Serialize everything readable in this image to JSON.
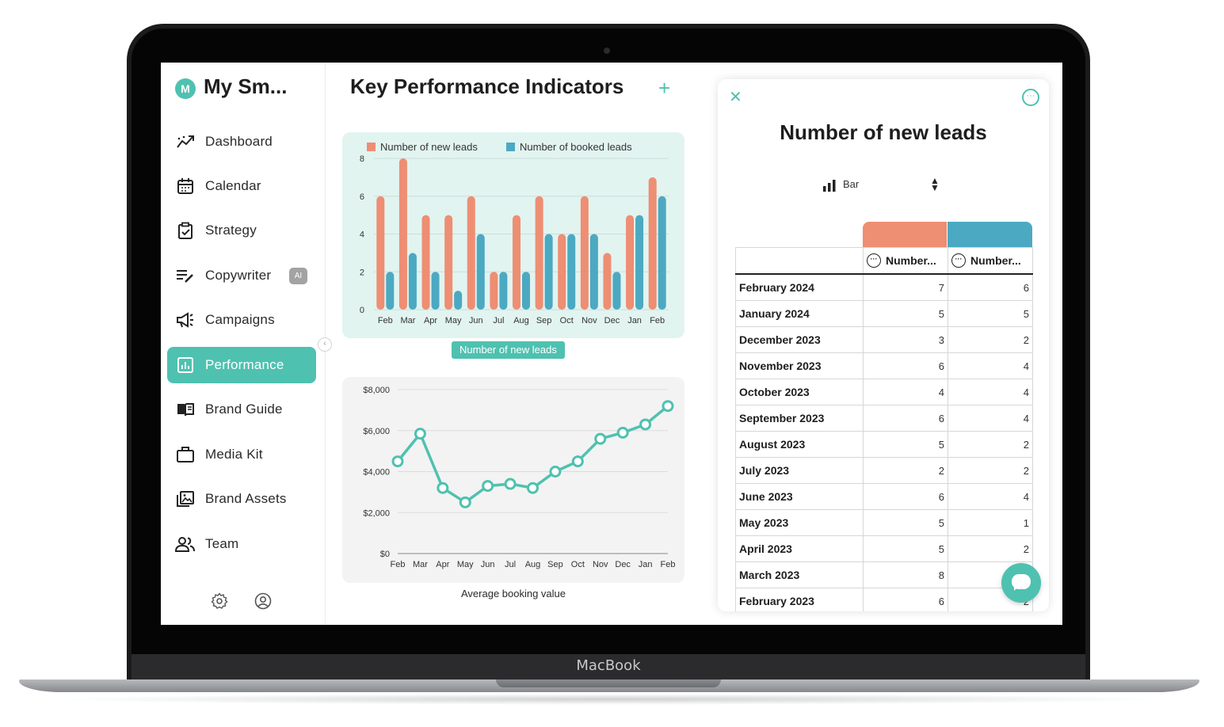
{
  "device": {
    "brand": "MacBook"
  },
  "sidebar": {
    "logo_letter": "M",
    "app_name": "My Sm...",
    "items": [
      {
        "label": "Dashboard",
        "icon": "trend-icon"
      },
      {
        "label": "Calendar",
        "icon": "calendar-icon"
      },
      {
        "label": "Strategy",
        "icon": "clipboard-check-icon"
      },
      {
        "label": "Copywriter",
        "icon": "edit-lines-icon",
        "badge": "AI"
      },
      {
        "label": "Campaigns",
        "icon": "megaphone-icon"
      },
      {
        "label": "Performance",
        "icon": "bar-chart-icon",
        "active": true
      },
      {
        "label": "Brand Guide",
        "icon": "book-icon"
      },
      {
        "label": "Media Kit",
        "icon": "briefcase-icon"
      },
      {
        "label": "Brand Assets",
        "icon": "image-stack-icon"
      },
      {
        "label": "Team",
        "icon": "team-icon"
      }
    ],
    "footer_icons": [
      "gear-icon",
      "user-circle-icon"
    ]
  },
  "main": {
    "title": "Key Performance Indicators",
    "add_label": "+"
  },
  "colors": {
    "accent": "#4fc1b0",
    "series_a": "#ee8e73",
    "series_b": "#4ca9c2",
    "line": "#4fc1b0"
  },
  "chart_data": [
    {
      "type": "bar",
      "categories": [
        "Feb",
        "Mar",
        "Apr",
        "May",
        "Jun",
        "Jul",
        "Aug",
        "Sep",
        "Oct",
        "Nov",
        "Dec",
        "Jan",
        "Feb"
      ],
      "series": [
        {
          "name": "Number of new leads",
          "values": [
            6,
            8,
            5,
            5,
            6,
            2,
            5,
            6,
            4,
            6,
            3,
            5,
            7
          ]
        },
        {
          "name": "Number of booked leads",
          "values": [
            2,
            3,
            2,
            1,
            4,
            2,
            2,
            4,
            4,
            4,
            2,
            5,
            6
          ]
        }
      ],
      "ylim": [
        0,
        8
      ],
      "yticks": [
        0,
        2,
        4,
        6,
        8
      ],
      "legend": "top",
      "caption": "Number of new leads"
    },
    {
      "type": "line",
      "categories": [
        "Feb",
        "Mar",
        "Apr",
        "May",
        "Jun",
        "Jul",
        "Aug",
        "Sep",
        "Oct",
        "Nov",
        "Dec",
        "Jan",
        "Feb"
      ],
      "series": [
        {
          "values": [
            4500,
            5850,
            3200,
            2500,
            3300,
            3400,
            3200,
            4000,
            4500,
            5600,
            5900,
            6300,
            7200
          ]
        }
      ],
      "ylim": [
        0,
        8000
      ],
      "yticks": [
        "$0",
        "$2,000",
        "$4,000",
        "$6,000",
        "$8,000"
      ],
      "caption": "Average booking value"
    }
  ],
  "panel": {
    "title": "Number of new leads",
    "chart_type_label": "Bar",
    "columns": [
      "Number...",
      "Number..."
    ],
    "rows": [
      {
        "month": "February 2024",
        "a": "7",
        "b": "6"
      },
      {
        "month": "January 2024",
        "a": "5",
        "b": "5"
      },
      {
        "month": "December 2023",
        "a": "3",
        "b": "2"
      },
      {
        "month": "November 2023",
        "a": "6",
        "b": "4"
      },
      {
        "month": "October 2023",
        "a": "4",
        "b": "4"
      },
      {
        "month": "September 2023",
        "a": "6",
        "b": "4"
      },
      {
        "month": "August 2023",
        "a": "5",
        "b": "2"
      },
      {
        "month": "July 2023",
        "a": "2",
        "b": "2"
      },
      {
        "month": "June 2023",
        "a": "6",
        "b": "4"
      },
      {
        "month": "May 2023",
        "a": "5",
        "b": "1"
      },
      {
        "month": "April 2023",
        "a": "5",
        "b": "2"
      },
      {
        "month": "March 2023",
        "a": "8",
        "b": ""
      },
      {
        "month": "February 2023",
        "a": "6",
        "b": "2"
      }
    ]
  }
}
